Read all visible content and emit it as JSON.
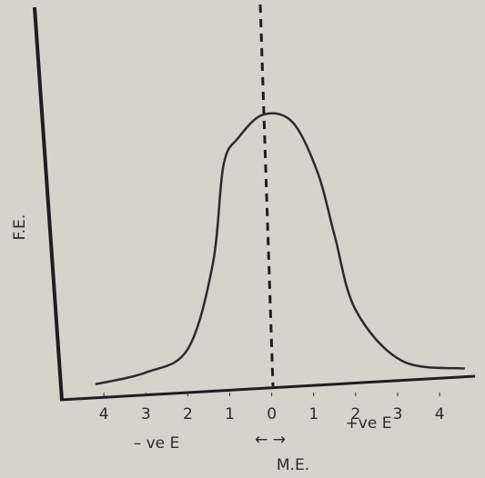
{
  "chart_data": {
    "type": "line",
    "y_label": "F.E.",
    "x_label": "M.E.",
    "annotations": [
      "– ve E",
      "← →",
      "+ve E"
    ],
    "x": [
      -4.2,
      -3,
      -2,
      -1.4,
      -1.15,
      -0.8,
      -0.2,
      0.5,
      1.1,
      1.5,
      2,
      3.1,
      4.6
    ],
    "series": [
      {
        "color": "#2b2b2b",
        "values": [
          0.04,
          0.07,
          0.13,
          0.35,
          0.6,
          0.67,
          0.73,
          0.71,
          0.58,
          0.42,
          0.23,
          0.1,
          0.08
        ]
      }
    ],
    "xlim": [
      -5,
      4.8
    ],
    "ylim": [
      0,
      1
    ],
    "xticks": [
      {
        "value": -4,
        "label": "4"
      },
      {
        "value": -3,
        "label": "3"
      },
      {
        "value": -2,
        "label": "2"
      },
      {
        "value": -1,
        "label": "1"
      },
      0,
      1,
      2,
      3,
      4
    ]
  }
}
